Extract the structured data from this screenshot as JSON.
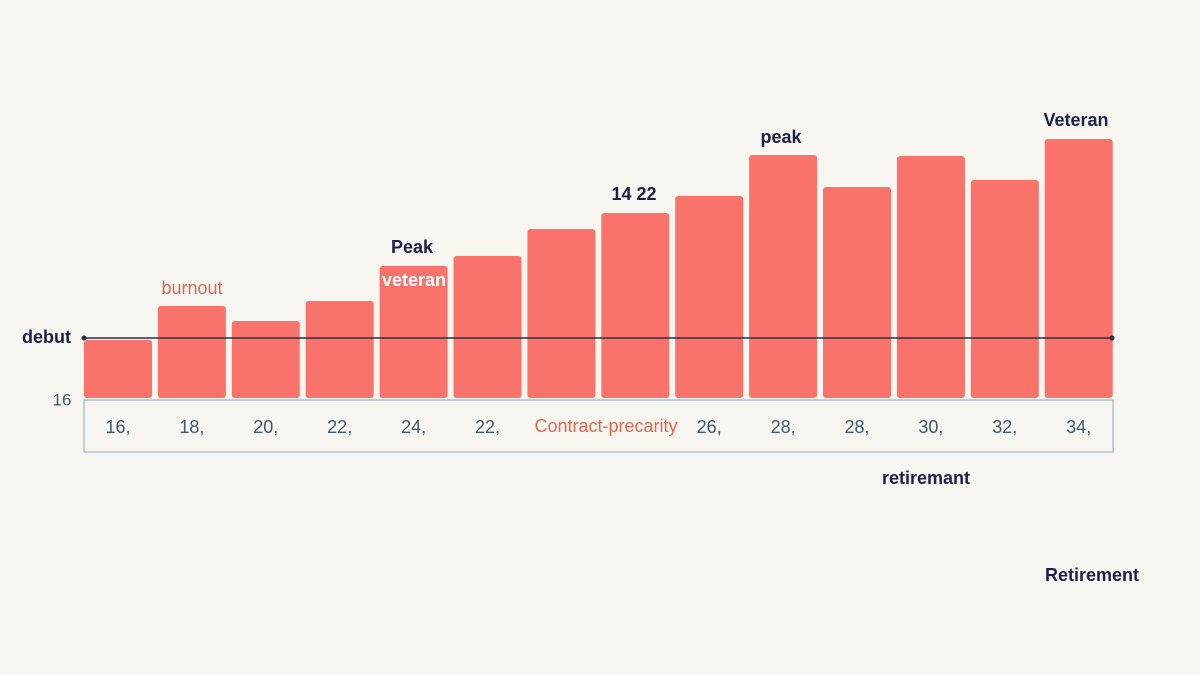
{
  "chart_data": {
    "type": "bar",
    "categories": [
      "16,",
      "18,",
      "20,",
      "22,",
      "24,",
      "22,",
      null,
      null,
      "26,",
      "28,",
      "28,",
      "30,",
      "32,",
      "34,"
    ],
    "values": [
      58,
      92,
      77,
      97,
      132,
      142,
      169,
      185,
      202,
      243,
      211,
      242,
      218,
      259
    ],
    "color": "#fa736b",
    "ylim": [
      0,
      270
    ],
    "yticks": [
      {
        "value": 0,
        "label": "16"
      }
    ],
    "reference_line": {
      "label": "debut",
      "value": 60,
      "color": "#2a2f45"
    },
    "annotations": [
      {
        "text": "burnout",
        "color": "#e2674f"
      },
      {
        "text": "Peak",
        "color": "#1c1f4a"
      },
      {
        "text": "veteran",
        "color": "#ffffff"
      },
      {
        "text": "14 22",
        "color": "#1c1f4a"
      },
      {
        "text": "peak",
        "color": "#1c1f4a"
      },
      {
        "text": "Veteran",
        "color": "#1c1f4a"
      },
      {
        "text": "Contract-precarity",
        "color": "#e2674f"
      },
      {
        "text": "retiremant",
        "color": "#1c1f4a"
      },
      {
        "text": "Retirement",
        "color": "#1c1f4a"
      }
    ]
  }
}
